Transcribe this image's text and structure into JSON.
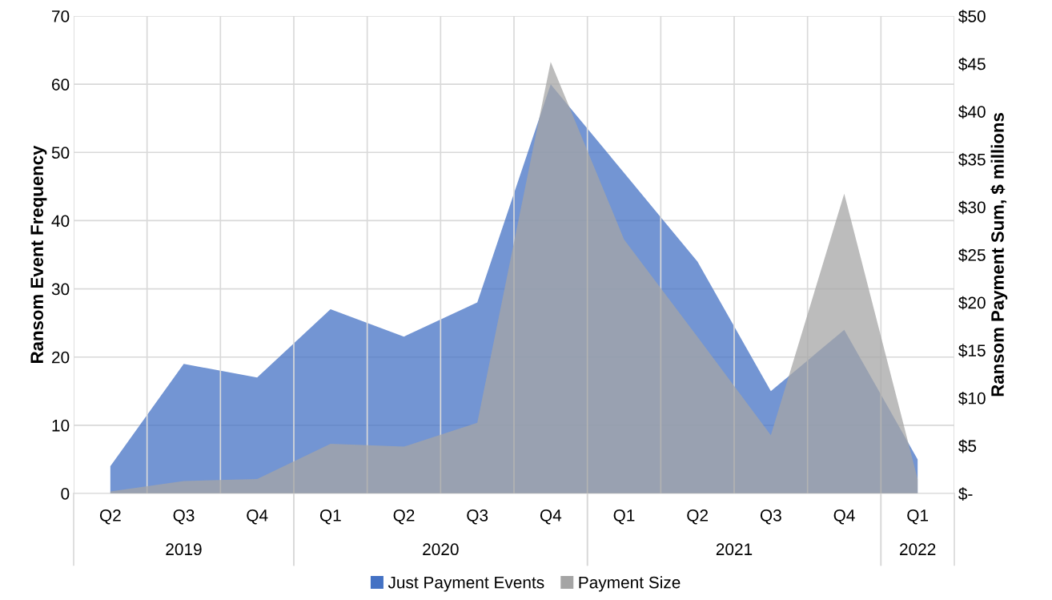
{
  "chart_data": {
    "type": "area",
    "ylabel": "Ransom Event Frequency",
    "y2label": "Ransom Payment Sum, $ millions",
    "categories": [
      "Q2",
      "Q3",
      "Q4",
      "Q1",
      "Q2",
      "Q3",
      "Q4",
      "Q1",
      "Q2",
      "Q3",
      "Q4",
      "Q1"
    ],
    "annotations": [
      "2019",
      "2020",
      "2021",
      "2022"
    ],
    "series": [
      {
        "name": "Just Payment Events",
        "color": "#4472c4",
        "values": [
          4,
          19,
          17,
          27,
          23,
          28,
          60,
          47,
          34,
          15,
          24,
          5
        ]
      },
      {
        "name": "Payment Size",
        "color": "#a5a5a5",
        "axis": "y2",
        "values": [
          0.2,
          1.3,
          1.5,
          5.2,
          4.9,
          7.4,
          45.2,
          26.6,
          16.4,
          6.1,
          31.4,
          1.5
        ]
      }
    ],
    "ylim": [
      0,
      70
    ],
    "yticks": [
      0,
      10,
      20,
      30,
      40,
      50,
      60,
      70
    ],
    "y2lim": [
      0,
      50
    ],
    "y2ticks": [
      {
        "value": 0,
        "label": "$-"
      },
      {
        "value": 5,
        "label": "$5"
      },
      {
        "value": 10,
        "label": "$10"
      },
      {
        "value": 15,
        "label": "$15"
      },
      {
        "value": 20,
        "label": "$20"
      },
      {
        "value": 25,
        "label": "$25"
      },
      {
        "value": 30,
        "label": "$30"
      },
      {
        "value": 35,
        "label": "$35"
      },
      {
        "value": 40,
        "label": "$40"
      },
      {
        "value": 45,
        "label": "$45"
      },
      {
        "value": 50,
        "label": "$50"
      }
    ],
    "grid": true,
    "legend": "bottom"
  }
}
